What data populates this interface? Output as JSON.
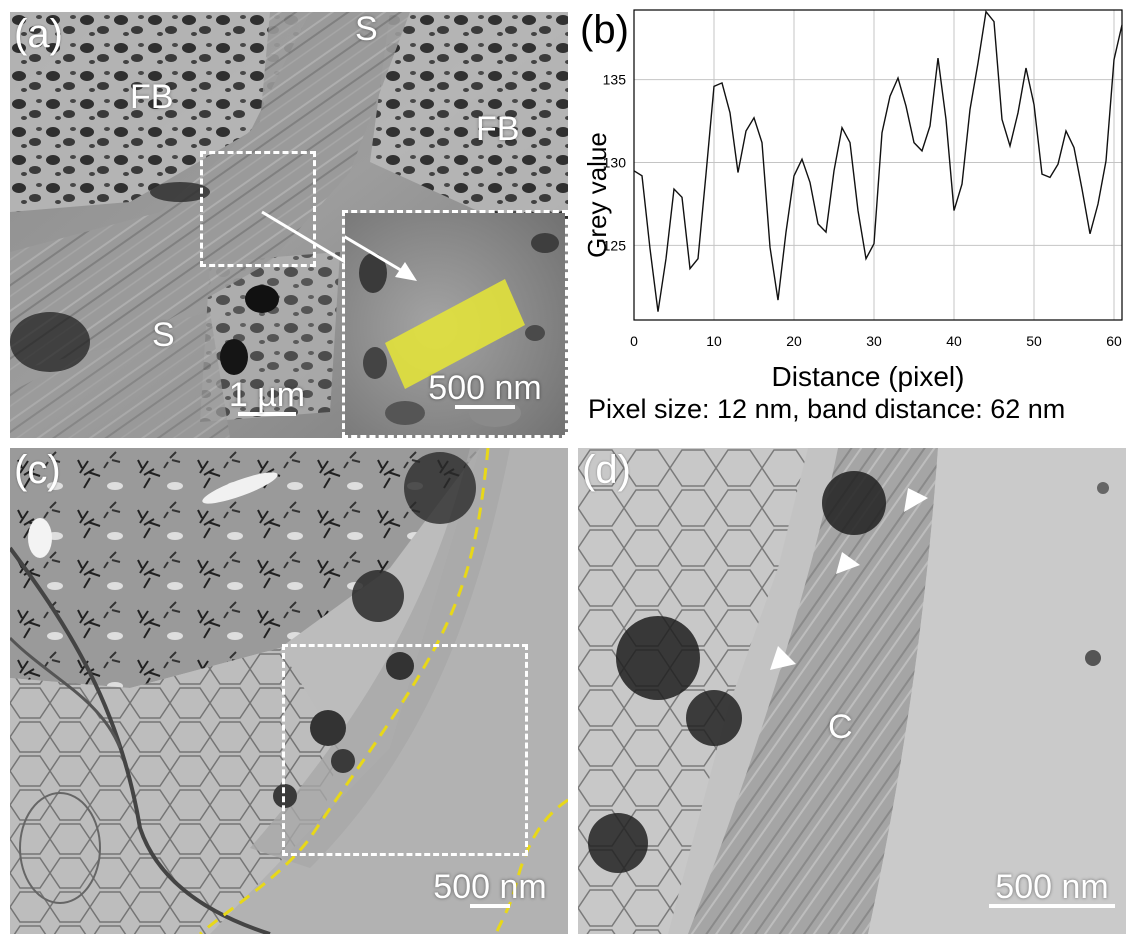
{
  "panels": {
    "a": {
      "letter": "(a)",
      "labels": [
        "FB",
        "S",
        "FB",
        "S"
      ],
      "scale_bar": "1 µm",
      "inset_scale_bar": "500 nm"
    },
    "b": {
      "letter": "(b)",
      "caption": "Pixel size: 12 nm, band distance: 62 nm"
    },
    "c": {
      "letter": "(c)",
      "scale_bar": "500 nm"
    },
    "d": {
      "letter": "(d)",
      "label_c": "C",
      "scale_bar": "500 nm"
    }
  },
  "colors": {
    "highlight": "#e6e635",
    "trace_line": "#e8d818"
  },
  "chart_data": {
    "type": "line",
    "xlabel": "Distance (pixel)",
    "ylabel": "Grey value",
    "xlim": [
      0,
      61
    ],
    "ylim": [
      120.5,
      139.2
    ],
    "xticks": [
      0,
      10,
      20,
      30,
      40,
      50,
      60
    ],
    "yticks": [
      125,
      130,
      135
    ],
    "grid": true,
    "series": [
      {
        "x": [
          0,
          1,
          2,
          3,
          4,
          5,
          6,
          7,
          8,
          9,
          10,
          11,
          12,
          13,
          14,
          15,
          16,
          17,
          18,
          19,
          20,
          21,
          22,
          23,
          24,
          25,
          26,
          27,
          28,
          29,
          30,
          31,
          32,
          33,
          34,
          35,
          36,
          37,
          38,
          39,
          40,
          41,
          42,
          43,
          44,
          45,
          46,
          47,
          48,
          49,
          50,
          51,
          52,
          53,
          54,
          55,
          56,
          57,
          58,
          59,
          60,
          61
        ],
        "y": [
          129.5,
          129.2,
          124.8,
          121.0,
          124.2,
          128.4,
          127.9,
          123.6,
          124.2,
          129.3,
          134.6,
          134.8,
          133.0,
          129.4,
          131.9,
          132.7,
          131.2,
          124.9,
          121.7,
          125.8,
          129.2,
          130.2,
          128.8,
          126.3,
          125.8,
          129.5,
          132.1,
          131.2,
          127.1,
          124.2,
          125.1,
          131.8,
          134.0,
          135.1,
          133.4,
          131.2,
          130.7,
          132.2,
          136.3,
          132.6,
          127.1,
          128.7,
          133.2,
          136.0,
          139.1,
          138.5,
          132.6,
          131.0,
          133.0,
          135.7,
          133.5,
          129.3,
          129.1,
          129.9,
          131.9,
          130.9,
          128.4,
          125.7,
          127.5,
          130.1,
          136.2,
          138.3
        ]
      }
    ]
  }
}
